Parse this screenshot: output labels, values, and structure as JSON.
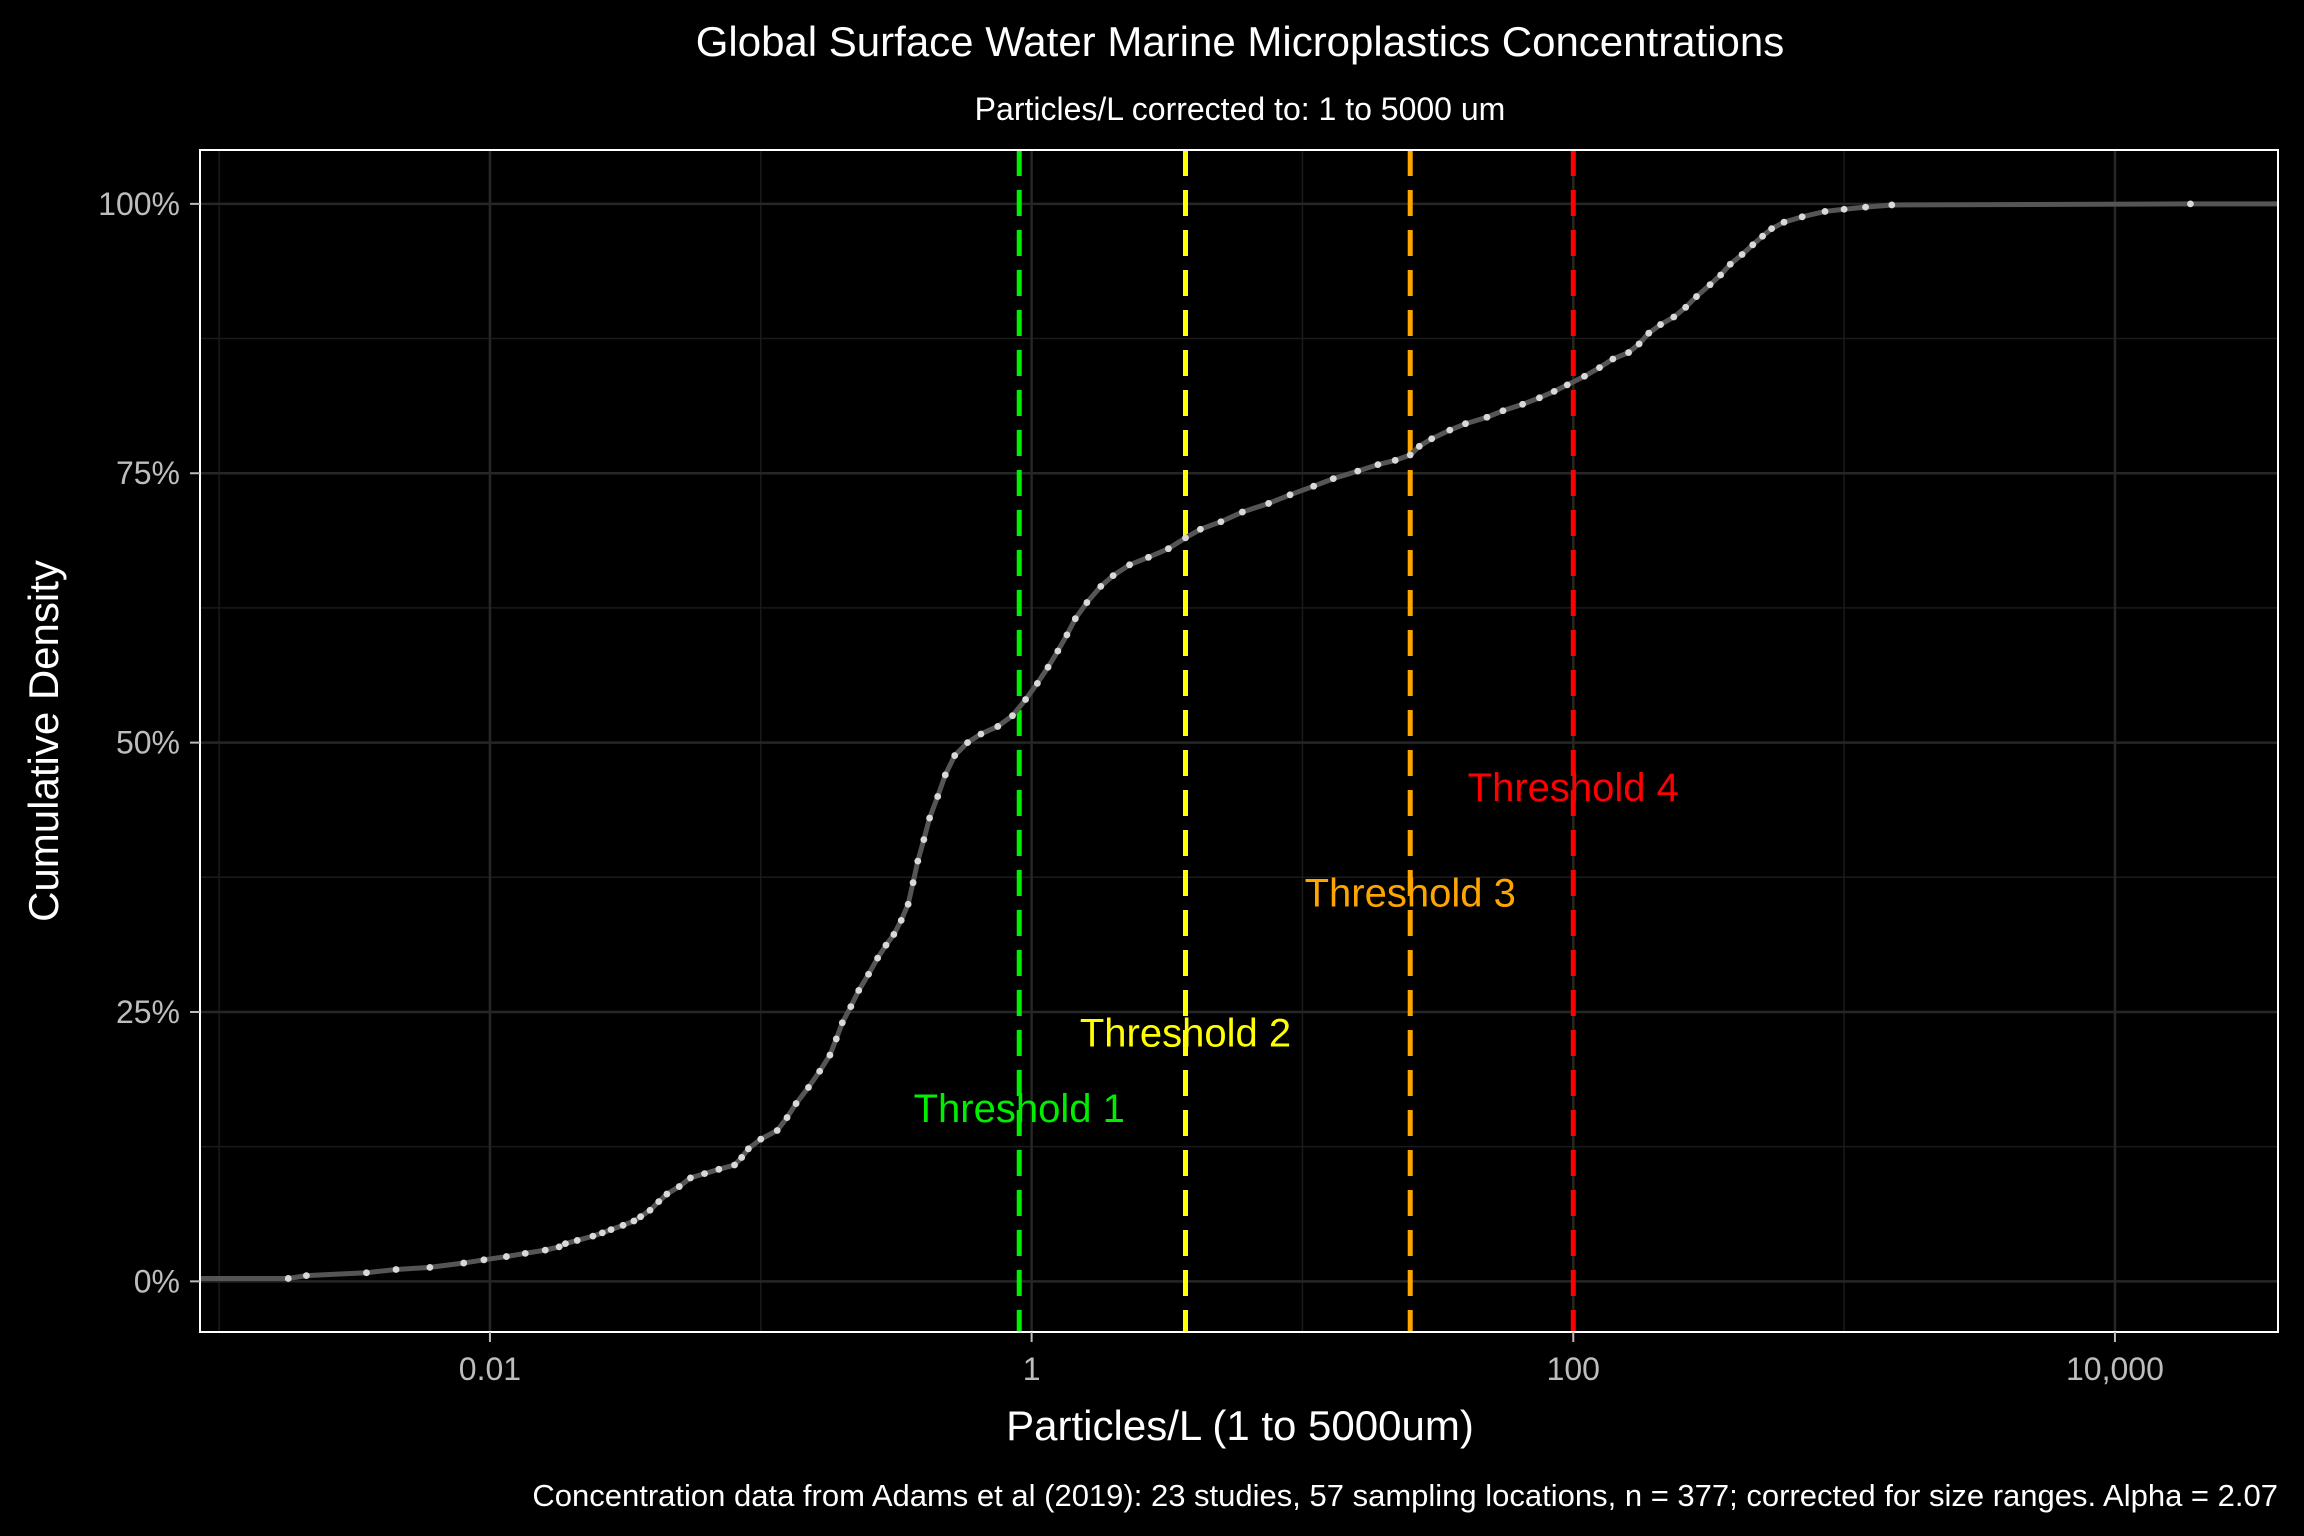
{
  "chart_data": {
    "type": "line",
    "title": "Global Surface Water Marine Microplastics Concentrations",
    "subtitle": "Particles/L corrected to: 1 to 5000 um",
    "xlabel": "Particles/L (1 to 5000um)",
    "ylabel": "Cumulative Density",
    "caption": "Concentration data from Adams et al (2019): 23 studies, 57 sampling locations, n = 377; corrected for size ranges. Alpha =  2.07",
    "x_scale": "log10",
    "xlim": [
      0.00085,
      40000
    ],
    "ylim": [
      -0.047,
      1.05
    ],
    "x_ticks": [
      {
        "value": 0.01,
        "label": "0.01"
      },
      {
        "value": 1,
        "label": "1"
      },
      {
        "value": 100,
        "label": "100"
      },
      {
        "value": 10000,
        "label": "10,000"
      }
    ],
    "y_ticks": [
      {
        "value": 0,
        "label": "0%"
      },
      {
        "value": 0.25,
        "label": "25%"
      },
      {
        "value": 0.5,
        "label": "50%"
      },
      {
        "value": 0.75,
        "label": "75%"
      },
      {
        "value": 1,
        "label": "100%"
      }
    ],
    "grid": true,
    "background": "#000000",
    "series": [
      {
        "color": "#d9d9d9",
        "points": [
          [
            0.0018,
            0.0027
          ],
          [
            0.0021,
            0.0053
          ],
          [
            0.0035,
            0.008
          ],
          [
            0.0045,
            0.011
          ],
          [
            0.006,
            0.013
          ],
          [
            0.008,
            0.017
          ],
          [
            0.0095,
            0.02
          ],
          [
            0.0115,
            0.023
          ],
          [
            0.0135,
            0.026
          ],
          [
            0.016,
            0.029
          ],
          [
            0.018,
            0.032
          ],
          [
            0.019,
            0.035
          ],
          [
            0.021,
            0.038
          ],
          [
            0.024,
            0.042
          ],
          [
            0.026,
            0.045
          ],
          [
            0.028,
            0.048
          ],
          [
            0.031,
            0.052
          ],
          [
            0.034,
            0.056
          ],
          [
            0.036,
            0.06
          ],
          [
            0.039,
            0.066
          ],
          [
            0.042,
            0.074
          ],
          [
            0.045,
            0.081
          ],
          [
            0.05,
            0.088
          ],
          [
            0.055,
            0.096
          ],
          [
            0.062,
            0.1
          ],
          [
            0.07,
            0.104
          ],
          [
            0.08,
            0.108
          ],
          [
            0.085,
            0.115
          ],
          [
            0.09,
            0.123
          ],
          [
            0.1,
            0.132
          ],
          [
            0.115,
            0.14
          ],
          [
            0.125,
            0.152
          ],
          [
            0.135,
            0.165
          ],
          [
            0.15,
            0.18
          ],
          [
            0.165,
            0.195
          ],
          [
            0.18,
            0.21
          ],
          [
            0.19,
            0.225
          ],
          [
            0.2,
            0.24
          ],
          [
            0.215,
            0.255
          ],
          [
            0.23,
            0.27
          ],
          [
            0.25,
            0.285
          ],
          [
            0.27,
            0.3
          ],
          [
            0.29,
            0.312
          ],
          [
            0.31,
            0.322
          ],
          [
            0.33,
            0.335
          ],
          [
            0.35,
            0.35
          ],
          [
            0.365,
            0.37
          ],
          [
            0.38,
            0.39
          ],
          [
            0.4,
            0.41
          ],
          [
            0.42,
            0.43
          ],
          [
            0.45,
            0.45
          ],
          [
            0.48,
            0.47
          ],
          [
            0.52,
            0.488
          ],
          [
            0.58,
            0.5
          ],
          [
            0.65,
            0.508
          ],
          [
            0.75,
            0.515
          ],
          [
            0.85,
            0.525
          ],
          [
            0.95,
            0.54
          ],
          [
            1.05,
            0.555
          ],
          [
            1.15,
            0.57
          ],
          [
            1.25,
            0.585
          ],
          [
            1.35,
            0.6
          ],
          [
            1.45,
            0.615
          ],
          [
            1.6,
            0.63
          ],
          [
            1.8,
            0.645
          ],
          [
            2.0,
            0.655
          ],
          [
            2.3,
            0.665
          ],
          [
            2.7,
            0.672
          ],
          [
            3.2,
            0.68
          ],
          [
            3.7,
            0.69
          ],
          [
            4.2,
            0.698
          ],
          [
            5.0,
            0.705
          ],
          [
            6.0,
            0.714
          ],
          [
            7.5,
            0.722
          ],
          [
            9.0,
            0.73
          ],
          [
            11,
            0.738
          ],
          [
            13,
            0.745
          ],
          [
            16,
            0.752
          ],
          [
            19,
            0.758
          ],
          [
            22,
            0.762
          ],
          [
            25,
            0.767
          ],
          [
            27,
            0.775
          ],
          [
            30,
            0.782
          ],
          [
            35,
            0.79
          ],
          [
            40,
            0.796
          ],
          [
            48,
            0.802
          ],
          [
            55,
            0.808
          ],
          [
            65,
            0.814
          ],
          [
            75,
            0.82
          ],
          [
            85,
            0.826
          ],
          [
            95,
            0.832
          ],
          [
            110,
            0.84
          ],
          [
            125,
            0.848
          ],
          [
            140,
            0.856
          ],
          [
            160,
            0.862
          ],
          [
            175,
            0.87
          ],
          [
            190,
            0.88
          ],
          [
            210,
            0.888
          ],
          [
            235,
            0.895
          ],
          [
            260,
            0.904
          ],
          [
            285,
            0.914
          ],
          [
            320,
            0.925
          ],
          [
            350,
            0.934
          ],
          [
            380,
            0.944
          ],
          [
            420,
            0.953
          ],
          [
            460,
            0.962
          ],
          [
            500,
            0.97
          ],
          [
            540,
            0.977
          ],
          [
            600,
            0.983
          ],
          [
            700,
            0.988
          ],
          [
            850,
            0.993
          ],
          [
            1000,
            0.995
          ],
          [
            1200,
            0.997
          ],
          [
            1500,
            0.999
          ],
          [
            19000,
            1.0
          ]
        ]
      }
    ],
    "thresholds": [
      {
        "label": "Threshold 1",
        "x": 0.9,
        "label_x": 0.9,
        "label_y": 0.148,
        "color": "#00ee00"
      },
      {
        "label": "Threshold 2",
        "x": 3.7,
        "label_x": 3.7,
        "label_y": 0.218,
        "color": "#ffff00"
      },
      {
        "label": "Threshold 3",
        "x": 25,
        "label_x": 25,
        "label_y": 0.348,
        "color": "#ffa500"
      },
      {
        "label": "Threshold 4",
        "x": 100,
        "label_x": 100,
        "label_y": 0.446,
        "color": "#ff0000"
      }
    ]
  }
}
